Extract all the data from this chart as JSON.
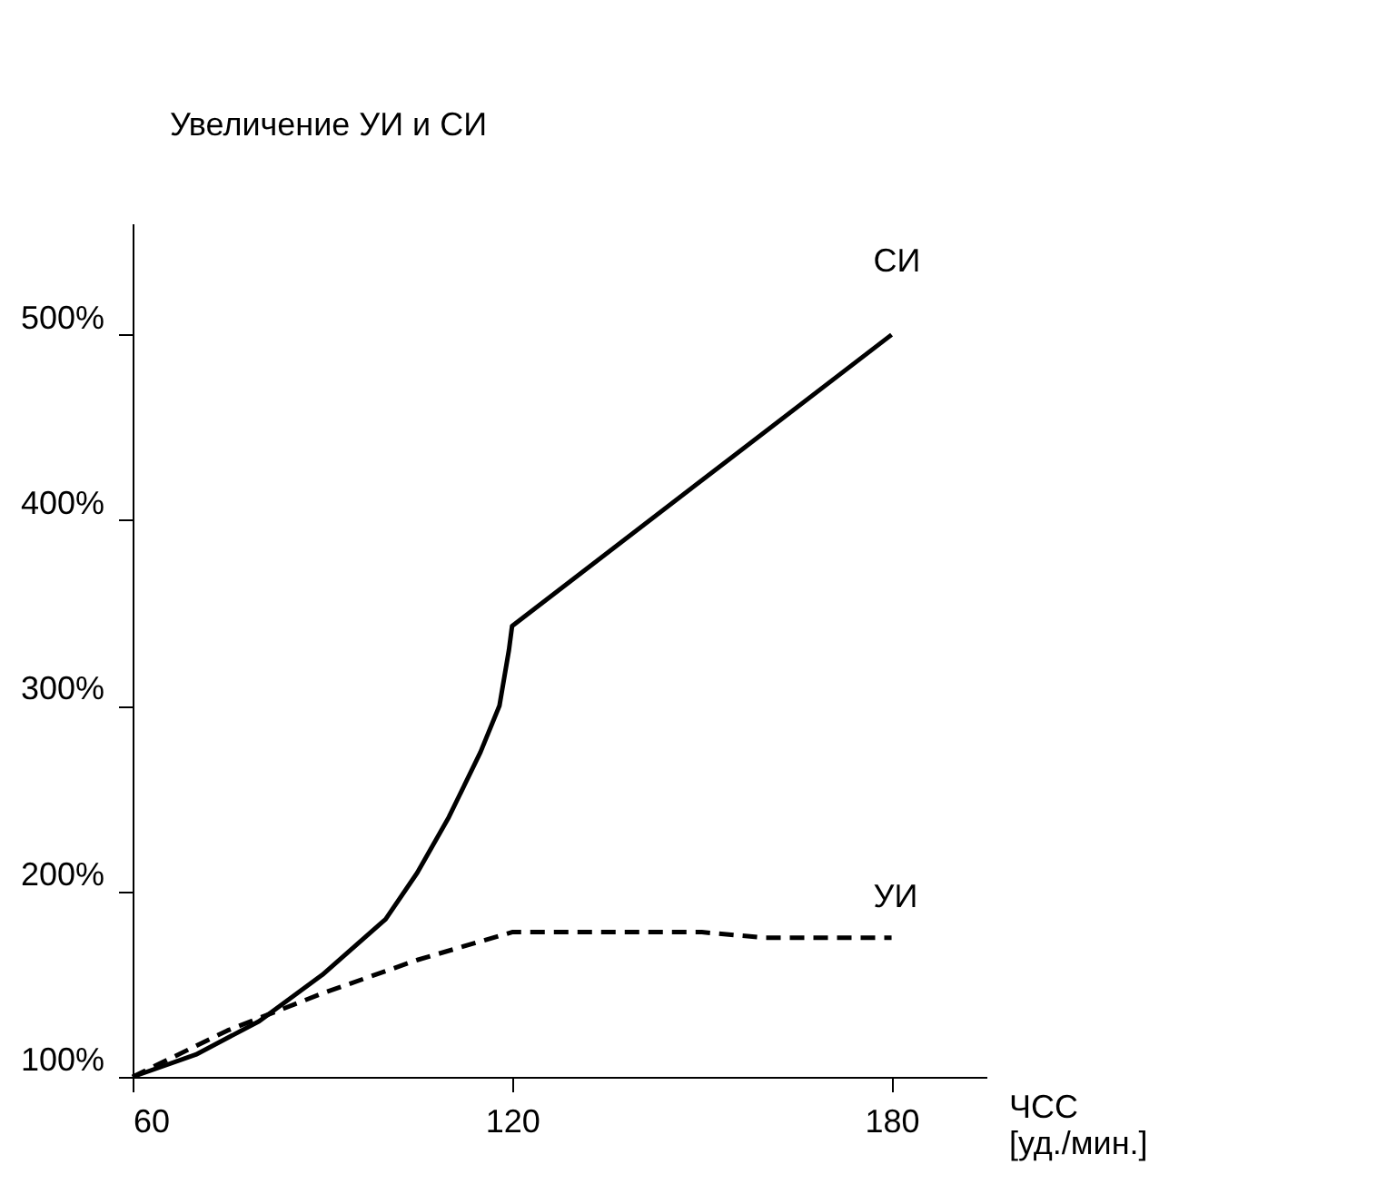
{
  "chart_data": {
    "type": "line",
    "xlabel": "ЧСС\n[уд./мин.]",
    "ylabel": "Увеличение УИ и СИ",
    "xlim": [
      60,
      195
    ],
    "ylim": [
      100,
      560
    ],
    "xticks": [
      60,
      120,
      180
    ],
    "yticks": [
      {
        "value": 100,
        "label": "100%"
      },
      {
        "value": 200,
        "label": "200%"
      },
      {
        "value": 300,
        "label": "300%"
      },
      {
        "value": 400,
        "label": "400%"
      },
      {
        "value": 500,
        "label": "500%"
      }
    ],
    "grid": false,
    "marker": "none",
    "series": [
      {
        "name": "СИ",
        "color": "#000000",
        "line_style": "solid",
        "x": [
          60,
          70,
          80,
          90,
          100,
          105,
          110,
          115,
          118,
          119.5,
          120,
          180
        ],
        "values": [
          100,
          112,
          130,
          155,
          185,
          210,
          240,
          275,
          300,
          330,
          343,
          500
        ]
      },
      {
        "name": "УИ",
        "color": "#000000",
        "line_style": "dashed",
        "x": [
          60,
          75,
          90,
          105,
          120,
          150,
          160,
          180
        ],
        "values": [
          100,
          125,
          145,
          163,
          178,
          178,
          175,
          175
        ]
      }
    ]
  }
}
